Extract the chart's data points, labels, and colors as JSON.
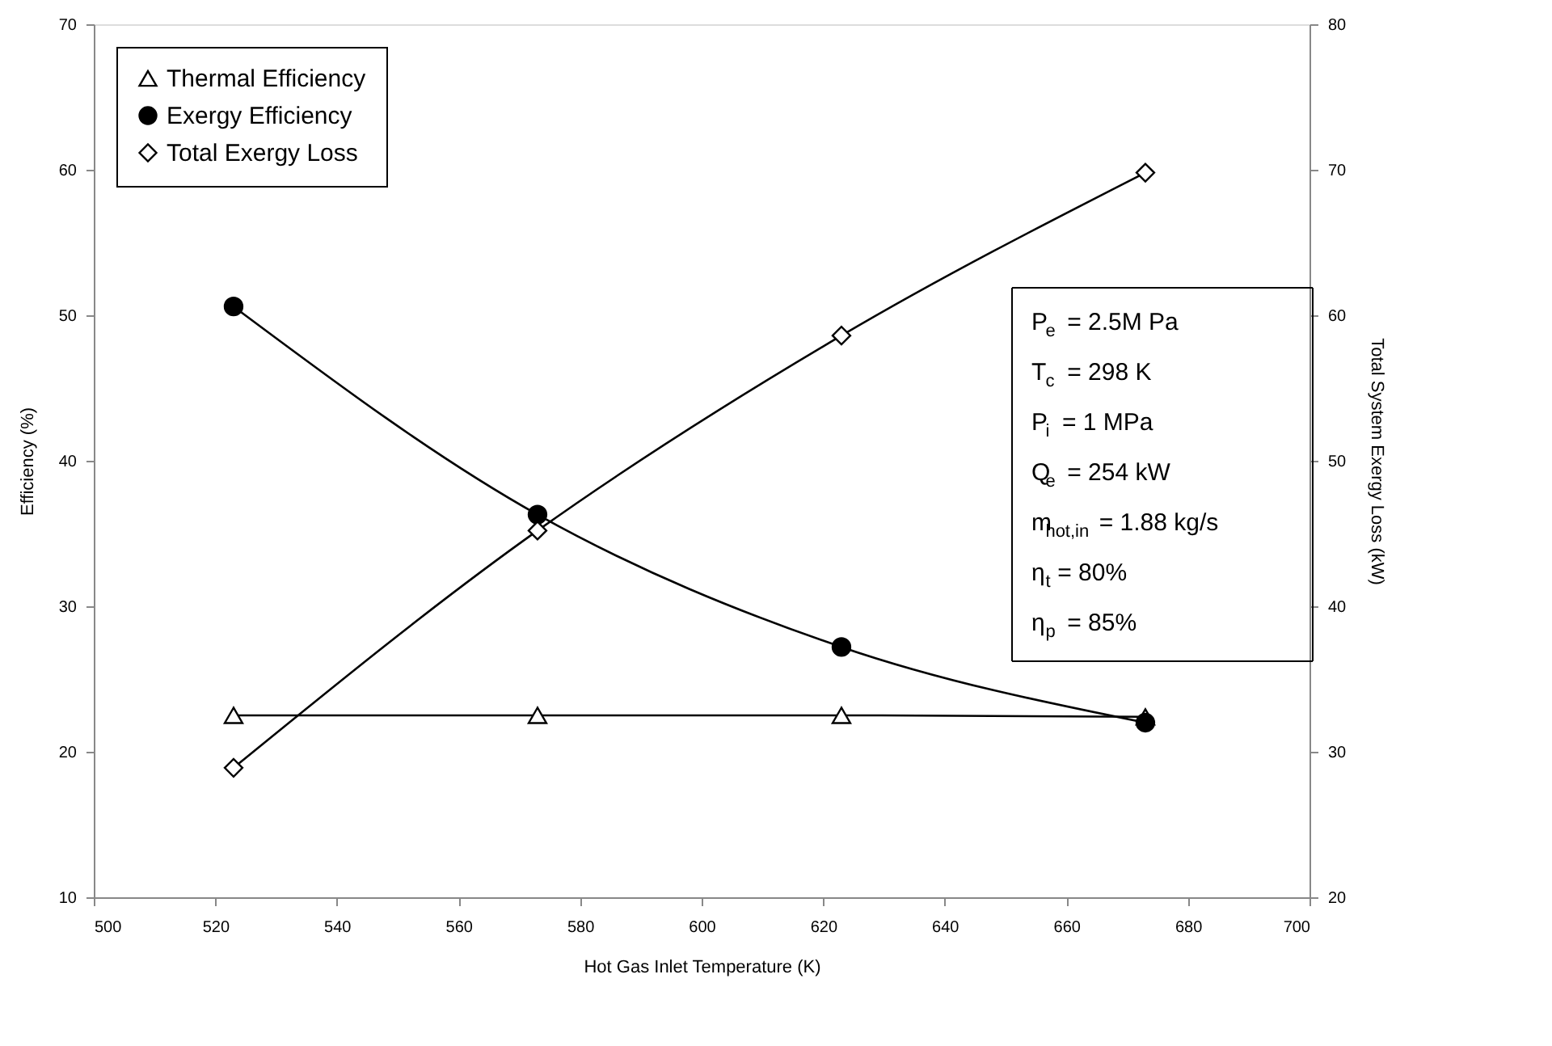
{
  "chart_data": {
    "type": "line",
    "xlabel": "Hot Gas Inlet Temperature (K)",
    "ylabel": "Efficiency (%)",
    "y2label": "Total System Exergy Loss (kW)",
    "x": [
      523,
      573,
      623,
      673
    ],
    "series": [
      {
        "name": "Thermal Efficiency",
        "color": "#000000",
        "marker": "triangle",
        "values": [
          22.5,
          22.5,
          22.5,
          22.4
        ]
      },
      {
        "name": "Exergy Efficiency",
        "color": "#000000",
        "marker": "circle",
        "values": [
          50.6,
          36.3,
          27.2,
          22.0
        ]
      },
      {
        "name": "Total Exergy Loss",
        "color": "#000000",
        "marker": "diamond",
        "axis": "y2",
        "values": [
          28.9,
          45.2,
          58.6,
          69.8
        ]
      }
    ],
    "xlim": [
      500,
      700
    ],
    "xticks": [
      500,
      520,
      540,
      560,
      580,
      600,
      620,
      640,
      660,
      680,
      700
    ],
    "ylim": [
      10,
      70
    ],
    "yticks": [
      10,
      20,
      30,
      40,
      50,
      60,
      70
    ],
    "y2lim": [
      20,
      80
    ],
    "y2ticks": [
      20,
      30,
      40,
      50,
      60,
      70,
      80
    ],
    "grid": false,
    "legend": "top left",
    "line_style": "solid",
    "annotations": [
      "P$_{e}$ = 2.5M Pa",
      "T$_{c}$ = 298 K",
      "P$_{i}$ = 1 MPa",
      "Q$_{e}$ = 254 kW",
      "m$_{hot,in}$= 1.88 kg/s",
      "η$_{t}$= 80%",
      "η$_{p}$ = 85%"
    ]
  }
}
